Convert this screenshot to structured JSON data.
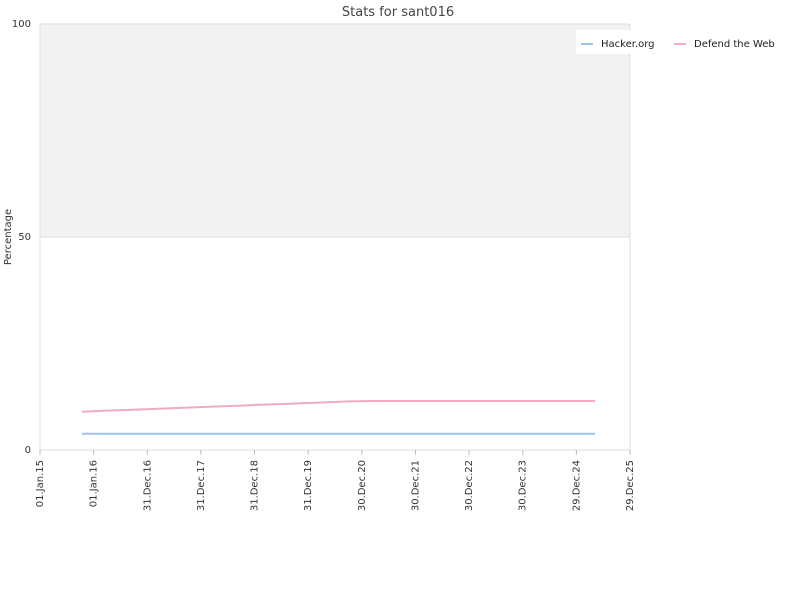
{
  "chart_data": {
    "type": "line",
    "title": "Stats for sant016",
    "xlabel": "",
    "ylabel": "Percentage",
    "ylim": [
      0,
      100
    ],
    "yticks": [
      0,
      50,
      100
    ],
    "shaded_band": [
      50,
      100
    ],
    "band_color": "#f2f2f2",
    "grid": "horizontal",
    "legend_position": "top-right",
    "x_ticks": [
      "01.Jan.15",
      "01.Jan.16",
      "31.Dec.16",
      "31.Dec.17",
      "31.Dec.18",
      "31.Dec.19",
      "30.Dec.20",
      "30.Dec.21",
      "30.Dec.22",
      "30.Dec.23",
      "29.Dec.24",
      "29.Dec.25"
    ],
    "x": [
      "Oct.15",
      "Jan.16",
      "Apr.16",
      "Jul.16",
      "Oct.16",
      "Jan.17",
      "Apr.17",
      "Jul.17",
      "Oct.17",
      "Jan.18",
      "Apr.18",
      "Jul.18",
      "Oct.18",
      "Jan.19",
      "Apr.19",
      "Jul.19",
      "Oct.19",
      "Jan.20",
      "Jan.21",
      "Jan.22",
      "Jan.23",
      "Jan.24",
      "Jan.25",
      "Apr.25"
    ],
    "series": [
      {
        "name": "Hacker.org",
        "color": "#9ec5e8",
        "values": [
          3.8,
          3.8,
          3.8,
          3.8,
          3.8,
          3.8,
          3.8,
          3.8,
          3.8,
          3.8,
          3.8,
          3.8,
          3.8,
          3.8,
          3.8,
          3.8,
          3.8,
          3.8,
          3.8,
          3.8,
          3.8,
          3.8,
          3.8,
          3.8
        ]
      },
      {
        "name": "Defend the Web",
        "color": "#f0a9c6",
        "values": [
          9.0,
          9.2,
          9.4,
          9.6,
          9.8,
          10.0,
          10.2,
          10.4,
          10.6,
          10.8,
          11.0,
          11.2,
          11.4,
          11.5,
          11.5,
          11.5,
          11.5,
          11.5,
          11.5,
          11.5,
          11.5,
          11.5,
          11.5,
          11.5
        ]
      }
    ]
  }
}
